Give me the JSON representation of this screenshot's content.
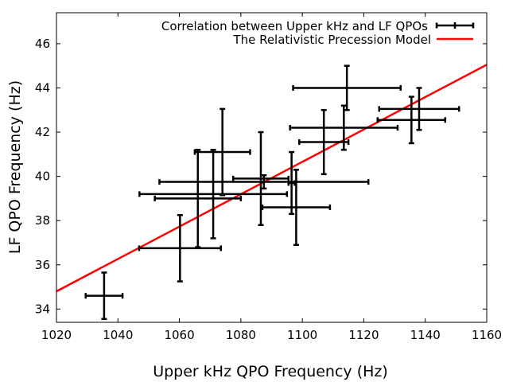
{
  "chart_data": {
    "type": "scatter",
    "xlabel": "Upper kHz QPO Frequency (Hz)",
    "ylabel": "LF QPO Frequency (Hz)",
    "xlim": [
      1020,
      1160
    ],
    "ylim": [
      33.4,
      47.4
    ],
    "xticks": [
      "1020",
      "1040",
      "1060",
      "1080",
      "1100",
      "1120",
      "1140",
      "1160"
    ],
    "yticks": [
      "34",
      "36",
      "38",
      "40",
      "42",
      "44",
      "46"
    ],
    "grid": false,
    "legend_position": "top-right",
    "series": [
      {
        "name": "Correlation between Upper kHz and LF QPOs",
        "color": "#000000",
        "kind": "errorbar",
        "points": [
          {
            "x": 1035.5,
            "y": 34.6,
            "xerr": 6.0,
            "yerr": 1.05
          },
          {
            "x": 1060.2,
            "y": 36.75,
            "xerr": 13.3,
            "yerr": 1.5
          },
          {
            "x": 1066.0,
            "y": 39.0,
            "xerr": 14.0,
            "yerr": 2.2
          },
          {
            "x": 1071.0,
            "y": 39.2,
            "xerr": 24.0,
            "yerr": 2.0
          },
          {
            "x": 1074.0,
            "y": 41.1,
            "xerr": 9.0,
            "yerr": 1.95
          },
          {
            "x": 1086.5,
            "y": 39.9,
            "xerr": 9.0,
            "yerr": 2.1
          },
          {
            "x": 1087.5,
            "y": 39.75,
            "xerr": 34.0,
            "yerr": 0.3
          },
          {
            "x": 1096.5,
            "y": 39.7,
            "xerr": 1.0,
            "yerr": 1.4
          },
          {
            "x": 1098.0,
            "y": 38.6,
            "xerr": 11.0,
            "yerr": 1.7
          },
          {
            "x": 1107.0,
            "y": 41.55,
            "xerr": 8.0,
            "yerr": 1.45
          },
          {
            "x": 1113.5,
            "y": 42.2,
            "xerr": 17.5,
            "yerr": 1.0
          },
          {
            "x": 1114.5,
            "y": 44.0,
            "xerr": 17.5,
            "yerr": 1.0
          },
          {
            "x": 1135.5,
            "y": 42.55,
            "xerr": 11.0,
            "yerr": 1.05
          },
          {
            "x": 1138.0,
            "y": 43.05,
            "xerr": 13.0,
            "yerr": 0.95
          }
        ]
      },
      {
        "name": "The Relativistic Precession Model",
        "color": "#ff0000",
        "kind": "line",
        "x": [
          1020,
          1160
        ],
        "y": [
          34.8,
          45.05
        ]
      }
    ]
  }
}
